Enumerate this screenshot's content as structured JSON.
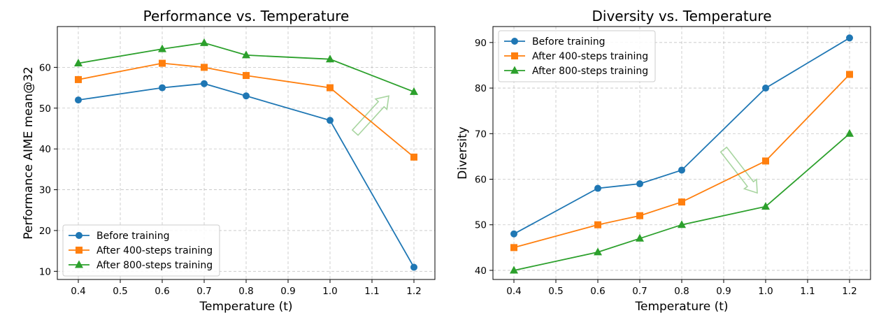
{
  "chart_data": [
    {
      "type": "line",
      "title": "Performance vs. Temperature",
      "xlabel": "Temperature (t)",
      "ylabel": "Performance AIME mean@32",
      "xlim": [
        0.35,
        1.25
      ],
      "ylim": [
        8,
        70
      ],
      "xticks": [
        0.4,
        0.5,
        0.6,
        0.7,
        0.8,
        0.9,
        1.0,
        1.1,
        1.2
      ],
      "xtick_labels": [
        "0.4",
        "0.5",
        "0.6",
        "0.7",
        "0.8",
        "0.9",
        "1.0",
        "1.1",
        "1.2"
      ],
      "yticks": [
        10,
        20,
        30,
        40,
        50,
        60
      ],
      "ytick_labels": [
        "10",
        "20",
        "30",
        "40",
        "50",
        "60"
      ],
      "grid": true,
      "legend_position": "lower-left",
      "annotation": "arrow-up-right",
      "x": [
        0.4,
        0.6,
        0.7,
        0.8,
        1.0,
        1.2
      ],
      "series": [
        {
          "name": "Before training",
          "values": [
            52,
            55,
            56,
            53,
            47,
            11
          ],
          "color": "#1f77b4",
          "marker": "circle"
        },
        {
          "name": "After 400-steps training",
          "values": [
            57,
            61,
            60,
            58,
            55,
            38
          ],
          "color": "#ff7f0e",
          "marker": "square"
        },
        {
          "name": "After 800-steps training",
          "values": [
            61,
            64.5,
            66,
            63,
            62,
            54
          ],
          "color": "#2ca02c",
          "marker": "triangle"
        }
      ]
    },
    {
      "type": "line",
      "title": "Diversity vs. Temperature",
      "xlabel": "Temperature (t)",
      "ylabel": "Diversity",
      "xlim": [
        0.35,
        1.25
      ],
      "ylim": [
        38,
        93.5
      ],
      "xticks": [
        0.4,
        0.5,
        0.6,
        0.7,
        0.8,
        0.9,
        1.0,
        1.1,
        1.2
      ],
      "xtick_labels": [
        "0.4",
        "0.5",
        "0.6",
        "0.7",
        "0.8",
        "0.9",
        "1.0",
        "1.1",
        "1.2"
      ],
      "yticks": [
        40,
        50,
        60,
        70,
        80,
        90
      ],
      "ytick_labels": [
        "40",
        "50",
        "60",
        "70",
        "80",
        "90"
      ],
      "grid": true,
      "legend_position": "upper-left",
      "annotation": "arrow-down-right",
      "x": [
        0.4,
        0.6,
        0.7,
        0.8,
        1.0,
        1.2
      ],
      "series": [
        {
          "name": "Before training",
          "values": [
            48,
            58,
            59,
            62,
            80,
            91
          ],
          "color": "#1f77b4",
          "marker": "circle"
        },
        {
          "name": "After 400-steps training",
          "values": [
            45,
            50,
            52,
            55,
            64,
            83
          ],
          "color": "#ff7f0e",
          "marker": "square"
        },
        {
          "name": "After 800-steps training",
          "values": [
            40,
            44,
            47,
            50,
            54,
            70
          ],
          "color": "#2ca02c",
          "marker": "triangle"
        }
      ]
    }
  ],
  "arrow_color": "#a8d5a0"
}
